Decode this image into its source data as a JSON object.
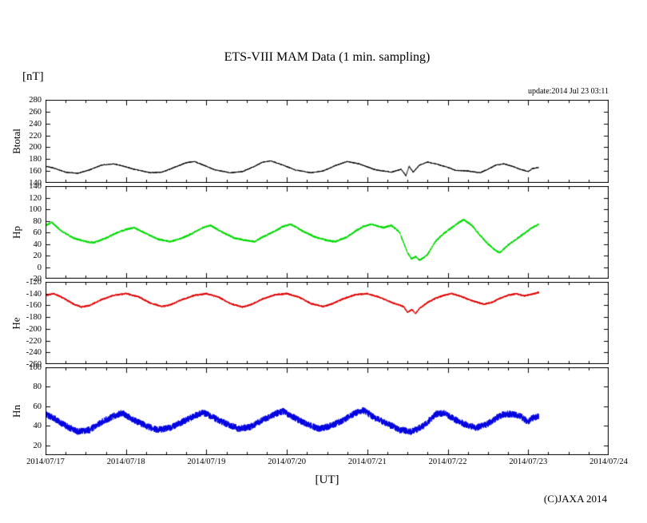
{
  "update_text": "update:2014 Jul 23 03:11",
  "copyright": "(C)JAXA 2014",
  "chart_data": {
    "type": "line",
    "title": "ETS-VIII MAM Data (1 min. sampling)",
    "xlabel": "[UT]",
    "ylabel": "[nT]",
    "legend_position": "none",
    "grid": false,
    "xlim_days": [
      0,
      7
    ],
    "data_end_days": 6.13,
    "sample_interval_minutes": 1,
    "x_tick_labels": [
      "2014/07/17",
      "2014/07/18",
      "2014/07/19",
      "2014/07/20",
      "2014/07/21",
      "2014/07/22",
      "2014/07/23",
      "2014/07/24"
    ],
    "panels": [
      {
        "name": "Btotal",
        "color": "#000000",
        "ylim": [
          140,
          280
        ],
        "yticks": [
          140,
          160,
          180,
          200,
          220,
          240,
          260,
          280
        ],
        "noise": 0.9,
        "keypoints": [
          [
            0,
            168
          ],
          [
            0.1,
            165
          ],
          [
            0.25,
            158
          ],
          [
            0.4,
            156
          ],
          [
            0.55,
            162
          ],
          [
            0.7,
            170
          ],
          [
            0.85,
            172
          ],
          [
            1,
            167
          ],
          [
            1.1,
            163
          ],
          [
            1.3,
            157
          ],
          [
            1.45,
            158
          ],
          [
            1.6,
            166
          ],
          [
            1.75,
            174
          ],
          [
            1.85,
            176
          ],
          [
            2,
            168
          ],
          [
            2.1,
            162
          ],
          [
            2.3,
            157
          ],
          [
            2.45,
            159
          ],
          [
            2.6,
            168
          ],
          [
            2.7,
            175
          ],
          [
            2.8,
            177
          ],
          [
            2.95,
            170
          ],
          [
            3.1,
            162
          ],
          [
            3.3,
            157
          ],
          [
            3.45,
            160
          ],
          [
            3.6,
            169
          ],
          [
            3.75,
            176
          ],
          [
            3.9,
            172
          ],
          [
            4,
            167
          ],
          [
            4.1,
            162
          ],
          [
            4.3,
            158
          ],
          [
            4.42,
            163
          ],
          [
            4.48,
            152
          ],
          [
            4.52,
            168
          ],
          [
            4.57,
            158
          ],
          [
            4.65,
            170
          ],
          [
            4.75,
            175
          ],
          [
            4.85,
            172
          ],
          [
            5,
            166
          ],
          [
            5.1,
            161
          ],
          [
            5.25,
            160
          ],
          [
            5.4,
            157
          ],
          [
            5.5,
            163
          ],
          [
            5.6,
            170
          ],
          [
            5.7,
            172
          ],
          [
            5.8,
            168
          ],
          [
            5.9,
            163
          ],
          [
            6,
            159
          ],
          [
            6.05,
            164
          ],
          [
            6.13,
            166
          ]
        ]
      },
      {
        "name": "Hp",
        "color": "#00d800",
        "ylim": [
          -20,
          140
        ],
        "yticks": [
          -20,
          0,
          20,
          40,
          60,
          80,
          100,
          120,
          140
        ],
        "noise": 1.8,
        "keypoints": [
          [
            0,
            72
          ],
          [
            0.08,
            77
          ],
          [
            0.2,
            62
          ],
          [
            0.35,
            50
          ],
          [
            0.5,
            44
          ],
          [
            0.6,
            42
          ],
          [
            0.75,
            50
          ],
          [
            0.9,
            60
          ],
          [
            1,
            65
          ],
          [
            1.1,
            68
          ],
          [
            1.25,
            58
          ],
          [
            1.4,
            48
          ],
          [
            1.55,
            44
          ],
          [
            1.7,
            50
          ],
          [
            1.85,
            60
          ],
          [
            1.95,
            68
          ],
          [
            2.05,
            72
          ],
          [
            2.2,
            60
          ],
          [
            2.35,
            50
          ],
          [
            2.5,
            46
          ],
          [
            2.6,
            44
          ],
          [
            2.7,
            52
          ],
          [
            2.85,
            62
          ],
          [
            2.95,
            70
          ],
          [
            3.05,
            74
          ],
          [
            3.2,
            62
          ],
          [
            3.35,
            52
          ],
          [
            3.5,
            46
          ],
          [
            3.6,
            44
          ],
          [
            3.75,
            52
          ],
          [
            3.85,
            62
          ],
          [
            3.95,
            70
          ],
          [
            4.05,
            74
          ],
          [
            4.2,
            68
          ],
          [
            4.3,
            72
          ],
          [
            4.4,
            60
          ],
          [
            4.5,
            25
          ],
          [
            4.55,
            14
          ],
          [
            4.6,
            18
          ],
          [
            4.65,
            12
          ],
          [
            4.7,
            16
          ],
          [
            4.75,
            22
          ],
          [
            4.85,
            45
          ],
          [
            4.95,
            58
          ],
          [
            5.05,
            68
          ],
          [
            5.15,
            78
          ],
          [
            5.2,
            82
          ],
          [
            5.3,
            72
          ],
          [
            5.4,
            55
          ],
          [
            5.5,
            40
          ],
          [
            5.6,
            28
          ],
          [
            5.65,
            25
          ],
          [
            5.75,
            38
          ],
          [
            5.85,
            48
          ],
          [
            5.95,
            58
          ],
          [
            6.05,
            68
          ],
          [
            6.13,
            74
          ]
        ]
      },
      {
        "name": "He",
        "color": "#e00000",
        "ylim": [
          -260,
          -120
        ],
        "yticks": [
          -260,
          -240,
          -220,
          -200,
          -180,
          -160,
          -140,
          -120
        ],
        "noise": 1.6,
        "keypoints": [
          [
            0,
            -143
          ],
          [
            0.1,
            -140
          ],
          [
            0.2,
            -146
          ],
          [
            0.35,
            -158
          ],
          [
            0.45,
            -163
          ],
          [
            0.55,
            -160
          ],
          [
            0.7,
            -150
          ],
          [
            0.85,
            -143
          ],
          [
            1,
            -140
          ],
          [
            1.15,
            -145
          ],
          [
            1.3,
            -156
          ],
          [
            1.45,
            -162
          ],
          [
            1.55,
            -159
          ],
          [
            1.7,
            -150
          ],
          [
            1.85,
            -143
          ],
          [
            2,
            -140
          ],
          [
            2.15,
            -146
          ],
          [
            2.3,
            -157
          ],
          [
            2.45,
            -163
          ],
          [
            2.55,
            -159
          ],
          [
            2.7,
            -149
          ],
          [
            2.85,
            -142
          ],
          [
            3,
            -140
          ],
          [
            3.15,
            -146
          ],
          [
            3.3,
            -157
          ],
          [
            3.45,
            -162
          ],
          [
            3.55,
            -158
          ],
          [
            3.7,
            -149
          ],
          [
            3.85,
            -142
          ],
          [
            4,
            -140
          ],
          [
            4.15,
            -146
          ],
          [
            4.3,
            -155
          ],
          [
            4.45,
            -162
          ],
          [
            4.5,
            -172
          ],
          [
            4.55,
            -167
          ],
          [
            4.6,
            -174
          ],
          [
            4.65,
            -165
          ],
          [
            4.75,
            -155
          ],
          [
            4.85,
            -148
          ],
          [
            4.95,
            -143
          ],
          [
            5.05,
            -140
          ],
          [
            5.15,
            -144
          ],
          [
            5.3,
            -152
          ],
          [
            5.45,
            -158
          ],
          [
            5.55,
            -155
          ],
          [
            5.65,
            -148
          ],
          [
            5.75,
            -143
          ],
          [
            5.85,
            -140
          ],
          [
            5.95,
            -144
          ],
          [
            6.05,
            -141
          ],
          [
            6.13,
            -138
          ]
        ]
      },
      {
        "name": "Hn",
        "color": "#0000e0",
        "ylim": [
          10,
          100
        ],
        "yticks": [
          20,
          40,
          60,
          80,
          100
        ],
        "noise": 3.5,
        "keypoints": [
          [
            0,
            52
          ],
          [
            0.1,
            48
          ],
          [
            0.25,
            40
          ],
          [
            0.4,
            34
          ],
          [
            0.55,
            36
          ],
          [
            0.7,
            44
          ],
          [
            0.85,
            50
          ],
          [
            0.95,
            53
          ],
          [
            1.1,
            46
          ],
          [
            1.25,
            40
          ],
          [
            1.4,
            36
          ],
          [
            1.55,
            38
          ],
          [
            1.7,
            44
          ],
          [
            1.85,
            50
          ],
          [
            1.95,
            54
          ],
          [
            2.1,
            48
          ],
          [
            2.25,
            42
          ],
          [
            2.4,
            37
          ],
          [
            2.55,
            39
          ],
          [
            2.7,
            46
          ],
          [
            2.85,
            52
          ],
          [
            2.95,
            55
          ],
          [
            3.1,
            48
          ],
          [
            3.25,
            42
          ],
          [
            3.4,
            37
          ],
          [
            3.55,
            40
          ],
          [
            3.7,
            46
          ],
          [
            3.85,
            53
          ],
          [
            3.95,
            56
          ],
          [
            4.1,
            48
          ],
          [
            4.25,
            42
          ],
          [
            4.4,
            36
          ],
          [
            4.55,
            34
          ],
          [
            4.7,
            40
          ],
          [
            4.85,
            52
          ],
          [
            4.95,
            53
          ],
          [
            5.1,
            46
          ],
          [
            5.2,
            42
          ],
          [
            5.35,
            38
          ],
          [
            5.5,
            42
          ],
          [
            5.6,
            48
          ],
          [
            5.7,
            52
          ],
          [
            5.8,
            52
          ],
          [
            5.9,
            50
          ],
          [
            6,
            44
          ],
          [
            6.05,
            48
          ],
          [
            6.13,
            50
          ]
        ]
      }
    ]
  }
}
